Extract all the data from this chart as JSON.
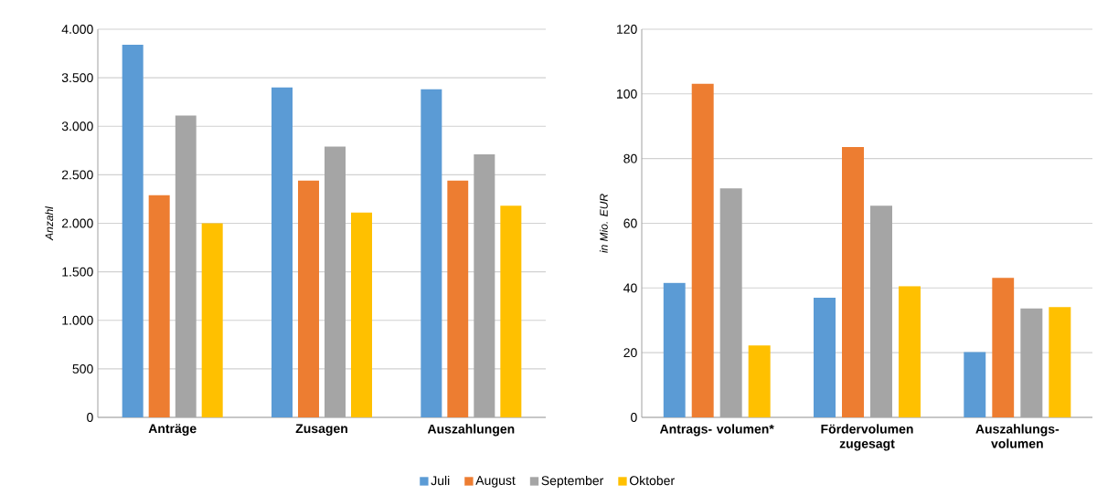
{
  "chart_data": [
    {
      "type": "bar",
      "categories": [
        "Anträge",
        "Zusagen",
        "Auszahlungen"
      ],
      "ylabel": "Anzahl",
      "series": [
        {
          "name": "Juli",
          "color": "#5b9bd5",
          "values": [
            3840,
            3400,
            3380
          ]
        },
        {
          "name": "August",
          "color": "#ed7d31",
          "values": [
            2290,
            2440,
            2440
          ]
        },
        {
          "name": "September",
          "color": "#a5a5a5",
          "values": [
            3110,
            2790,
            2710
          ]
        },
        {
          "name": "Oktober",
          "color": "#ffc000",
          "values": [
            2000,
            2110,
            2180
          ]
        }
      ],
      "ylim": [
        0,
        4000
      ],
      "yticks": [
        0,
        500,
        {
          "value": 1000,
          "label": "1.000"
        },
        {
          "value": 1500,
          "label": "1.500"
        },
        {
          "value": 2000,
          "label": "2.000"
        },
        {
          "value": 2500,
          "label": "2.500"
        },
        {
          "value": 3000,
          "label": "3.000"
        },
        {
          "value": 3500,
          "label": "3.500"
        },
        {
          "value": 4000,
          "label": "4.000"
        }
      ],
      "grid": "y",
      "legend": "bottom"
    },
    {
      "type": "bar",
      "categories": [
        "Antrags- volumen*",
        "Fördervolumen zugesagt",
        "Auszahlungs- volumen"
      ],
      "ylabel": "in Mio. EUR",
      "series": [
        {
          "color": "#5b9bd5",
          "values": [
            41.6,
            37.0,
            20.2
          ]
        },
        {
          "color": "#ed7d31",
          "values": [
            103.1,
            83.6,
            43.1
          ]
        },
        {
          "color": "#a5a5a5",
          "values": [
            70.8,
            65.4,
            33.7
          ]
        },
        {
          "color": "#ffc000",
          "values": [
            22.2,
            40.6,
            34.1
          ]
        }
      ],
      "ylim": [
        0,
        120
      ],
      "yticks": [
        0,
        20,
        40,
        60,
        80,
        100,
        120
      ],
      "grid": "y"
    }
  ]
}
